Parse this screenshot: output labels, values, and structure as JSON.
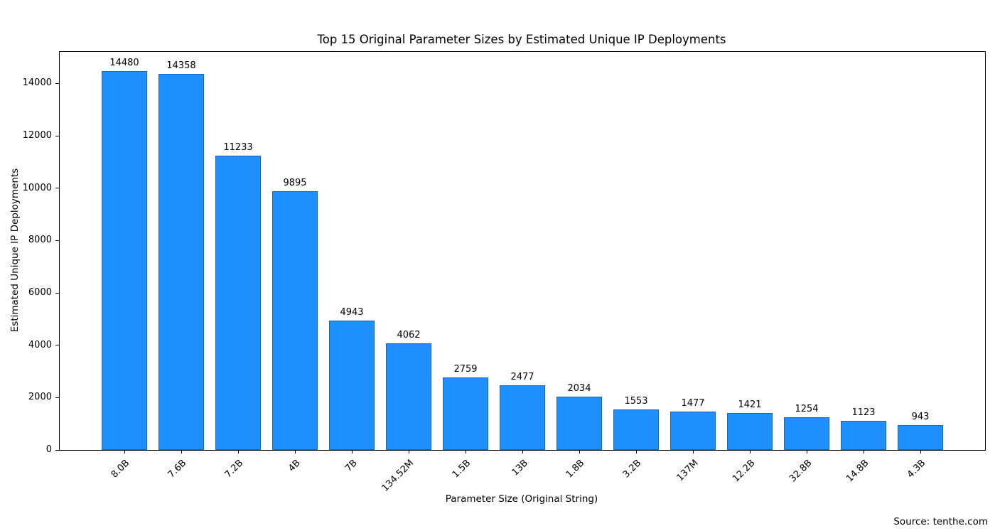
{
  "source": {
    "text": "Source: tenthe.com"
  },
  "colors": {
    "bar_fill": "#1E90FF",
    "bar_edge": "#1565C0",
    "axis": "#000000",
    "background": "#FFFFFF"
  },
  "chart_data": {
    "type": "bar",
    "title": "Top 15 Original Parameter Sizes by Estimated Unique IP Deployments",
    "xlabel": "Parameter Size (Original String)",
    "ylabel": "Estimated Unique IP Deployments",
    "categories": [
      "8.0B",
      "7.6B",
      "7.2B",
      "4B",
      "7B",
      "134.52M",
      "1.5B",
      "13B",
      "1.8B",
      "3.2B",
      "137M",
      "12.2B",
      "32.8B",
      "14.8B",
      "4.3B"
    ],
    "values": [
      14480,
      14358,
      11233,
      9895,
      4943,
      4062,
      2759,
      2477,
      2034,
      1553,
      1477,
      1421,
      1254,
      1123,
      943
    ],
    "bar_value_labels": [
      "14480",
      "14358",
      "11233",
      "9895",
      "4943",
      "4062",
      "2759",
      "2477",
      "2034",
      "1553",
      "1477",
      "1421",
      "1254",
      "1123",
      "943"
    ],
    "yticks": [
      0,
      2000,
      4000,
      6000,
      8000,
      10000,
      12000,
      14000
    ],
    "ylim": [
      0,
      15204
    ],
    "grid": false,
    "legend": "none",
    "bar_width_fraction": 0.8
  }
}
